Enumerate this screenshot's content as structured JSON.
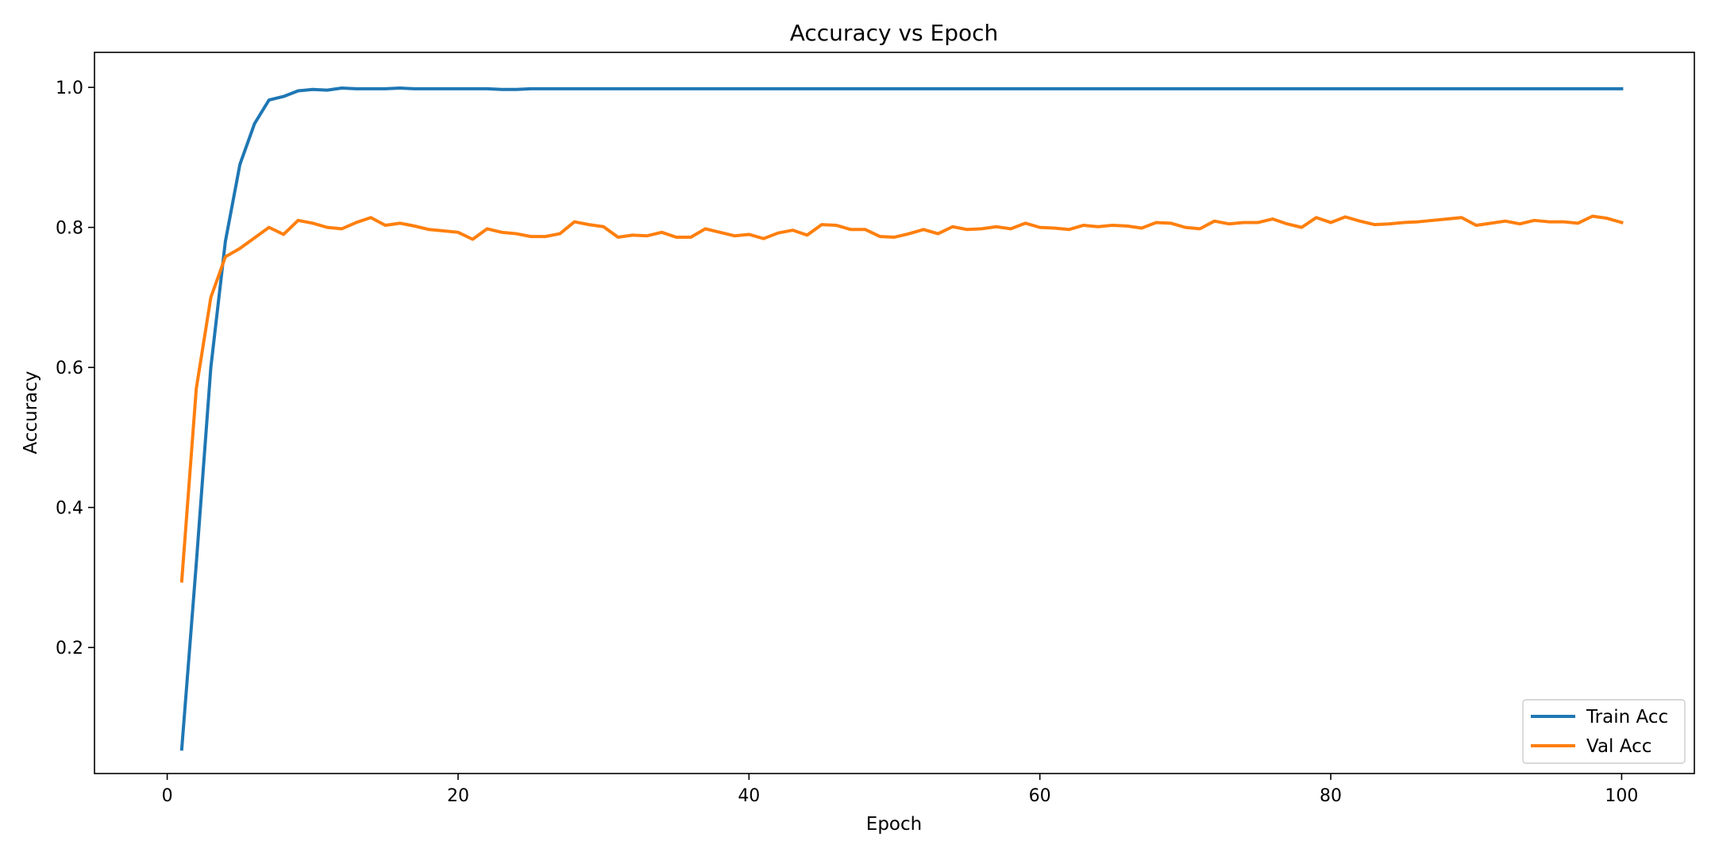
{
  "chart_data": {
    "type": "line",
    "title": "Accuracy vs Epoch",
    "xlabel": "Epoch",
    "ylabel": "Accuracy",
    "xlim": [
      -5,
      105
    ],
    "ylim": [
      0.02,
      1.05
    ],
    "xticks": [
      0,
      20,
      40,
      60,
      80,
      100
    ],
    "yticks": [
      0.2,
      0.4,
      0.6,
      0.8,
      1.0
    ],
    "xtick_labels": [
      "0",
      "20",
      "40",
      "60",
      "80",
      "100"
    ],
    "ytick_labels": [
      "0.2",
      "0.4",
      "0.6",
      "0.8",
      "1.0"
    ],
    "grid": false,
    "legend_position": "lower-right",
    "x": [
      1,
      2,
      3,
      4,
      5,
      6,
      7,
      8,
      9,
      10,
      11,
      12,
      13,
      14,
      15,
      16,
      17,
      18,
      19,
      20,
      21,
      22,
      23,
      24,
      25,
      26,
      27,
      28,
      29,
      30,
      31,
      32,
      33,
      34,
      35,
      36,
      37,
      38,
      39,
      40,
      41,
      42,
      43,
      44,
      45,
      46,
      47,
      48,
      49,
      50,
      51,
      52,
      53,
      54,
      55,
      56,
      57,
      58,
      59,
      60,
      61,
      62,
      63,
      64,
      65,
      66,
      67,
      68,
      69,
      70,
      71,
      72,
      73,
      74,
      75,
      76,
      77,
      78,
      79,
      80,
      81,
      82,
      83,
      84,
      85,
      86,
      87,
      88,
      89,
      90,
      91,
      92,
      93,
      94,
      95,
      96,
      97,
      98,
      99,
      100
    ],
    "series": [
      {
        "name": "Train Acc",
        "color": "#1f77b4",
        "values": [
          0.055,
          0.32,
          0.6,
          0.78,
          0.89,
          0.948,
          0.982,
          0.987,
          0.995,
          0.997,
          0.996,
          0.999,
          0.998,
          0.998,
          0.998,
          0.999,
          0.998,
          0.998,
          0.998,
          0.998,
          0.998,
          0.998,
          0.997,
          0.997,
          0.998,
          0.998,
          0.998,
          0.998,
          0.998,
          0.998,
          0.998,
          0.998,
          0.998,
          0.998,
          0.998,
          0.998,
          0.998,
          0.998,
          0.998,
          0.998,
          0.998,
          0.998,
          0.998,
          0.998,
          0.998,
          0.998,
          0.998,
          0.998,
          0.998,
          0.998,
          0.998,
          0.998,
          0.998,
          0.998,
          0.998,
          0.998,
          0.998,
          0.998,
          0.998,
          0.998,
          0.998,
          0.998,
          0.998,
          0.998,
          0.998,
          0.998,
          0.998,
          0.998,
          0.998,
          0.998,
          0.998,
          0.998,
          0.998,
          0.998,
          0.998,
          0.998,
          0.998,
          0.998,
          0.998,
          0.998,
          0.998,
          0.998,
          0.998,
          0.998,
          0.998,
          0.998,
          0.998,
          0.998,
          0.998,
          0.998,
          0.998,
          0.998,
          0.998,
          0.998,
          0.998,
          0.998,
          0.998,
          0.998,
          0.998,
          0.998
        ]
      },
      {
        "name": "Val Acc",
        "color": "#ff7f0e",
        "values": [
          0.295,
          0.57,
          0.7,
          0.758,
          0.77,
          0.785,
          0.8,
          0.79,
          0.81,
          0.806,
          0.8,
          0.798,
          0.807,
          0.814,
          0.803,
          0.806,
          0.802,
          0.797,
          0.795,
          0.793,
          0.783,
          0.798,
          0.793,
          0.791,
          0.787,
          0.787,
          0.791,
          0.808,
          0.804,
          0.801,
          0.786,
          0.789,
          0.788,
          0.793,
          0.786,
          0.786,
          0.798,
          0.793,
          0.788,
          0.79,
          0.784,
          0.792,
          0.796,
          0.789,
          0.804,
          0.803,
          0.797,
          0.797,
          0.787,
          0.786,
          0.791,
          0.797,
          0.791,
          0.801,
          0.797,
          0.798,
          0.801,
          0.798,
          0.806,
          0.8,
          0.799,
          0.797,
          0.803,
          0.801,
          0.803,
          0.802,
          0.799,
          0.807,
          0.806,
          0.8,
          0.798,
          0.809,
          0.805,
          0.807,
          0.807,
          0.812,
          0.805,
          0.8,
          0.814,
          0.807,
          0.815,
          0.809,
          0.804,
          0.805,
          0.807,
          0.808,
          0.81,
          0.812,
          0.814,
          0.803,
          0.806,
          0.809,
          0.805,
          0.81,
          0.808,
          0.808,
          0.806,
          0.816,
          0.813,
          0.807
        ]
      }
    ]
  }
}
